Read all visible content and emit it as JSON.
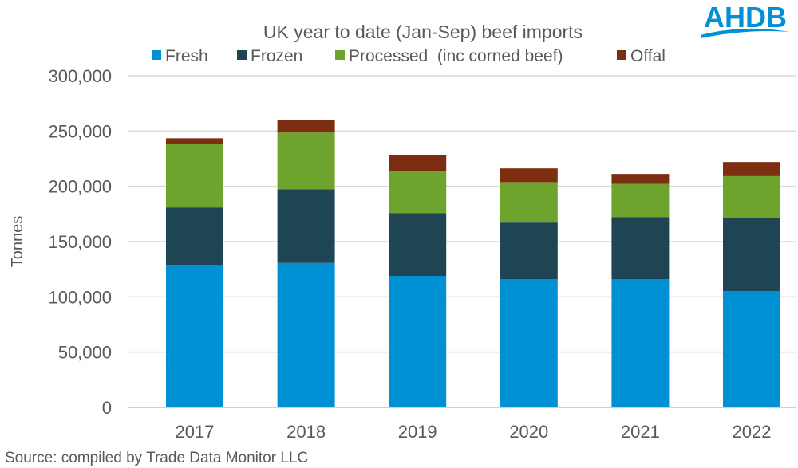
{
  "logo": {
    "text": "AHDB",
    "color": "#0090D4"
  },
  "source": "Source: compiled by Trade Data Monitor LLC",
  "chart_data": {
    "type": "bar",
    "stacked": true,
    "title": "UK year to date (Jan-Sep) beef imports",
    "xlabel": "",
    "ylabel": "Tonnes",
    "ylim": [
      0,
      300000
    ],
    "yticks": [
      0,
      50000,
      100000,
      150000,
      200000,
      250000,
      300000
    ],
    "ytick_labels": [
      "0",
      "50,000",
      "100,000",
      "150,000",
      "200,000",
      "250,000",
      "300,000"
    ],
    "grid": true,
    "legend_position": "top",
    "categories": [
      "2017",
      "2018",
      "2019",
      "2020",
      "2021",
      "2022"
    ],
    "series": [
      {
        "name": "Fresh",
        "color": "#0090D4",
        "values": [
          128700,
          130700,
          119000,
          116100,
          116100,
          105300
        ]
      },
      {
        "name": "Frozen",
        "color": "#1F4454",
        "values": [
          52200,
          66700,
          56600,
          51100,
          55900,
          66000
        ]
      },
      {
        "name": "Processed  (inc corned beef)",
        "color": "#6EA42E",
        "values": [
          57100,
          51200,
          38400,
          36600,
          30300,
          37900
        ]
      },
      {
        "name": "Offal",
        "color": "#7B2F10",
        "values": [
          5500,
          11400,
          14400,
          12400,
          8900,
          12800
        ]
      }
    ]
  }
}
